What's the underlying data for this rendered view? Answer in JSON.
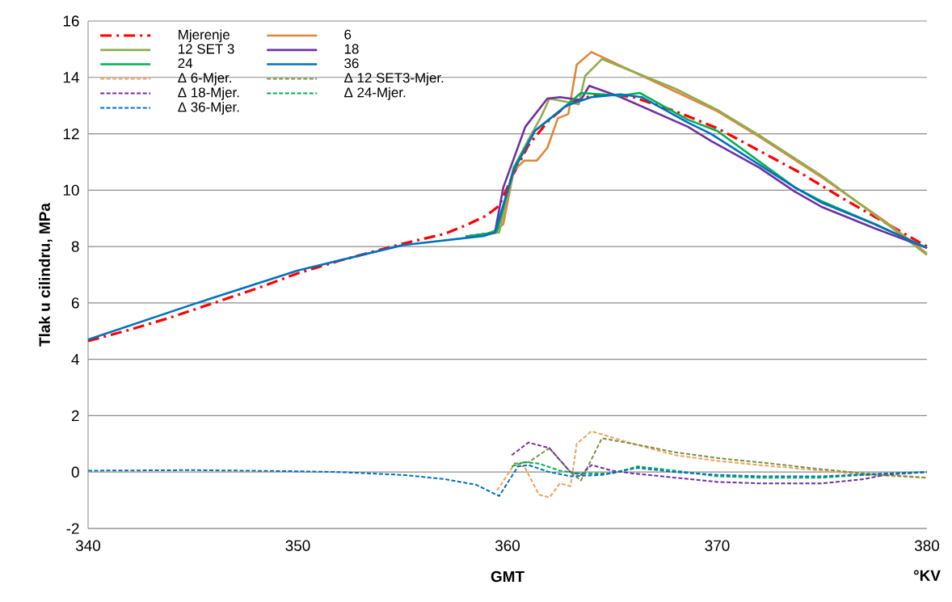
{
  "chart_data": {
    "type": "line",
    "xlabel": "**GMT**",
    "ylabel": "**Tlak u cilindru, MPa**",
    "annotations": [
      "**°KV**"
    ],
    "xlim": [
      340,
      380
    ],
    "ylim": [
      -2,
      16
    ],
    "xticks": [
      340,
      350,
      360,
      370,
      380
    ],
    "yticks": [
      -2,
      0,
      2,
      4,
      6,
      8,
      10,
      12,
      14,
      16
    ],
    "grid": "y",
    "legend": "top left",
    "marker": "none",
    "series": [
      {
        "name": "Mjerenje",
        "color": "#ff0000",
        "line_style": "dashdot",
        "x": [
          340,
          342,
          344,
          346,
          348,
          350,
          352,
          354,
          355,
          357,
          358,
          359,
          359.6,
          360.3,
          361,
          362,
          363,
          364,
          365,
          366,
          368,
          370,
          372,
          374,
          376,
          378,
          380
        ],
        "values": [
          4.65,
          5.05,
          5.5,
          6.0,
          6.5,
          7.05,
          7.5,
          7.9,
          8.1,
          8.45,
          8.75,
          9.1,
          9.45,
          10.6,
          11.6,
          12.5,
          13.1,
          13.35,
          13.4,
          13.3,
          12.8,
          12.2,
          11.4,
          10.6,
          9.7,
          8.85,
          8.0
        ]
      },
      {
        "name": "6",
        "color": "#e0863a",
        "line_style": "solid",
        "x": [
          358,
          359,
          359.5,
          359.8,
          360.3,
          360.8,
          361.4,
          361.9,
          362.4,
          362.9,
          363.3,
          364,
          366,
          368,
          370,
          372,
          375,
          378,
          380
        ],
        "values": [
          8.35,
          8.45,
          8.6,
          8.8,
          10.7,
          11.05,
          11.05,
          11.5,
          12.55,
          12.7,
          14.45,
          14.9,
          14.2,
          13.5,
          12.8,
          11.9,
          10.45,
          8.9,
          7.75
        ]
      },
      {
        "name": "12 SET 3",
        "color": "#8fac52",
        "line_style": "solid",
        "x": [
          358,
          359,
          359.6,
          360.3,
          361,
          361.6,
          362,
          363.4,
          363.7,
          364.5,
          366,
          368,
          370,
          372,
          375,
          378,
          380
        ],
        "values": [
          8.35,
          8.45,
          8.5,
          10.8,
          11.8,
          12.6,
          13.25,
          13.05,
          14.05,
          14.65,
          14.2,
          13.6,
          12.85,
          11.95,
          10.5,
          8.85,
          7.7
        ]
      },
      {
        "name": "18",
        "color": "#7030a0",
        "line_style": "solid",
        "x": [
          358,
          359,
          359.4,
          359.8,
          360.85,
          361.9,
          362.5,
          363.5,
          363.9,
          365.4,
          368.6,
          369.7,
          372,
          373.7,
          375,
          377.5,
          380
        ],
        "values": [
          8.35,
          8.45,
          8.5,
          10.1,
          12.25,
          13.25,
          13.3,
          13.2,
          13.7,
          13.3,
          12.25,
          11.75,
          10.8,
          9.95,
          9.4,
          8.65,
          7.95
        ]
      },
      {
        "name": "24",
        "color": "#00b050",
        "line_style": "solid",
        "x": [
          358,
          359,
          359.5,
          360.3,
          361.3,
          362.8,
          363.5,
          365.4,
          366.3,
          368.6,
          370,
          373.7,
          375,
          377.5,
          380
        ],
        "values": [
          8.35,
          8.45,
          8.55,
          10.8,
          12.1,
          13.0,
          13.45,
          13.35,
          13.45,
          12.5,
          12.1,
          10.1,
          9.6,
          8.8,
          7.95
        ]
      },
      {
        "name": "36",
        "color": "#0070c0",
        "line_style": "solid",
        "x": [
          340,
          345,
          350,
          355,
          358.9,
          359.4,
          360.3,
          361.3,
          362.8,
          364,
          365.4,
          366.4,
          368.6,
          369.7,
          373.7,
          375,
          377.5,
          380
        ],
        "values": [
          4.7,
          5.95,
          7.15,
          8.05,
          8.38,
          8.5,
          10.7,
          12.1,
          13.0,
          13.3,
          13.4,
          13.3,
          12.4,
          12.0,
          10.1,
          9.55,
          8.8,
          7.95
        ]
      },
      {
        "name": "Δ 6-Mjer.",
        "color": "#f0a060",
        "line_style": "dashed",
        "x": [
          359.5,
          360.3,
          360.8,
          361.5,
          362,
          362.5,
          363,
          363.3,
          364,
          366,
          368,
          370,
          372,
          375,
          377,
          380
        ],
        "values": [
          -0.65,
          0.25,
          0.2,
          -0.8,
          -0.9,
          -0.4,
          -0.5,
          1.0,
          1.45,
          1.0,
          0.6,
          0.4,
          0.25,
          0.05,
          -0.1,
          -0.2
        ]
      },
      {
        "name": "Δ 12 SET3-Mjer.",
        "color": "#77933c",
        "line_style": "dashed",
        "x": [
          360.3,
          361,
          362,
          363,
          363.5,
          364.5,
          366,
          368,
          370,
          372,
          375,
          377,
          380
        ],
        "values": [
          0.3,
          0.35,
          0.85,
          0.0,
          -0.3,
          1.2,
          1.0,
          0.7,
          0.5,
          0.35,
          0.1,
          -0.05,
          -0.2
        ]
      },
      {
        "name": "Δ 18-Mjer.",
        "color": "#7030a0",
        "line_style": "dashed",
        "x": [
          360.2,
          361,
          362,
          363,
          363.5,
          364,
          365,
          366,
          368,
          370,
          372,
          375,
          377,
          378,
          380
        ],
        "values": [
          0.6,
          1.05,
          0.85,
          0.0,
          -0.1,
          0.25,
          0.05,
          -0.05,
          -0.2,
          -0.35,
          -0.4,
          -0.4,
          -0.25,
          -0.1,
          0.0
        ]
      },
      {
        "name": "Δ 24-Mjer.",
        "color": "#00b050",
        "line_style": "dashed",
        "x": [
          360.2,
          360.8,
          361.5,
          362.5,
          363.5,
          365,
          366.2,
          368,
          370,
          372,
          375,
          377,
          380
        ],
        "values": [
          0.2,
          0.35,
          0.3,
          0.05,
          -0.05,
          -0.05,
          0.2,
          0.05,
          -0.15,
          -0.2,
          -0.2,
          -0.1,
          0.0
        ]
      },
      {
        "name": "Δ 36-Mjer.",
        "color": "#0070c0",
        "line_style": "dashed",
        "x": [
          340,
          345,
          350,
          352,
          355,
          357,
          358.5,
          359.6,
          360.5,
          361,
          362,
          363,
          364.5,
          366.2,
          368,
          370,
          372,
          375,
          378,
          380
        ],
        "values": [
          0.05,
          0.07,
          0.03,
          0.0,
          -0.1,
          -0.25,
          -0.45,
          -0.85,
          0.2,
          0.25,
          0.0,
          -0.15,
          -0.1,
          0.15,
          0.0,
          -0.1,
          -0.15,
          -0.15,
          -0.05,
          0.0
        ]
      }
    ]
  }
}
